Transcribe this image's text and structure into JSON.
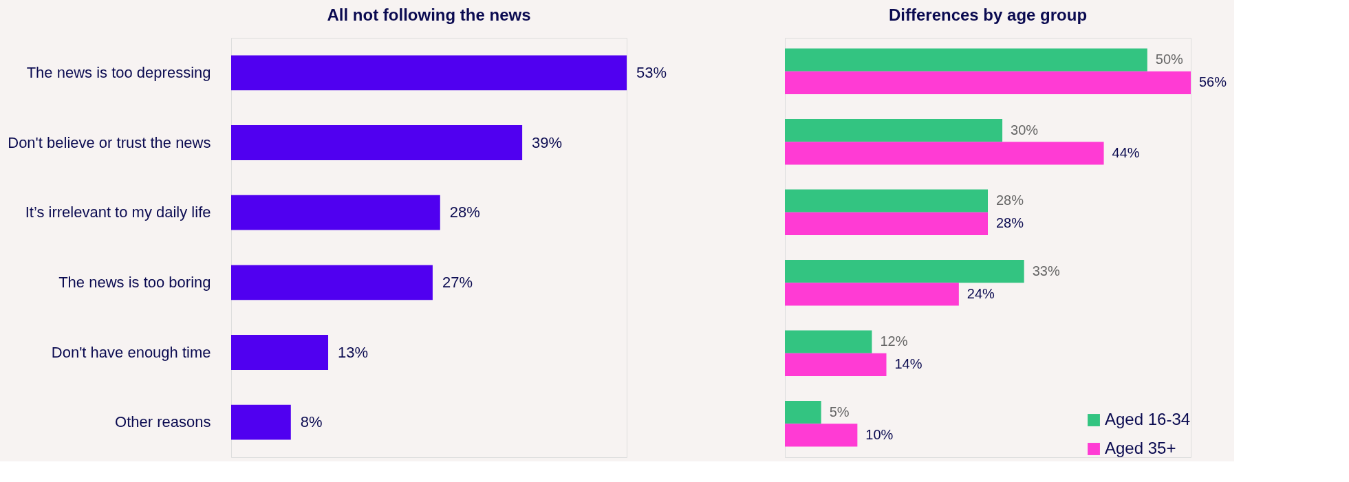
{
  "chart_data": [
    {
      "type": "bar",
      "title": "All not following the news",
      "orientation": "horizontal",
      "categories": [
        "The news is too depressing",
        "Don't believe or trust the news",
        "It’s irrelevant to my daily life",
        "The news is too boring",
        "Don't have enough time",
        "Other reasons"
      ],
      "values": [
        53,
        39,
        28,
        27,
        13,
        8
      ],
      "value_labels": [
        "53%",
        "39%",
        "28%",
        "27%",
        "13%",
        "8%"
      ],
      "color": "#5000f0",
      "tick_labels": "y",
      "grid": false,
      "legend": false
    },
    {
      "type": "bar",
      "title": "Differences by age group",
      "orientation": "horizontal",
      "categories": [
        null,
        null,
        null,
        null,
        null,
        null
      ],
      "series": [
        {
          "name": "Aged 16-34",
          "color": "#33c481",
          "values": [
            50,
            30,
            28,
            33,
            12,
            5
          ],
          "value_labels": [
            "50%",
            "30%",
            "28%",
            "33%",
            "12%",
            "5%"
          ]
        },
        {
          "name": "Aged 35+",
          "color": "#ff3bd4",
          "values": [
            56,
            44,
            28,
            24,
            14,
            10
          ],
          "value_labels": [
            "56%",
            "44%",
            "28%",
            "24%",
            "14%",
            "10%"
          ]
        }
      ],
      "tick_labels": false,
      "grid": false,
      "legend": "bottom right"
    }
  ]
}
